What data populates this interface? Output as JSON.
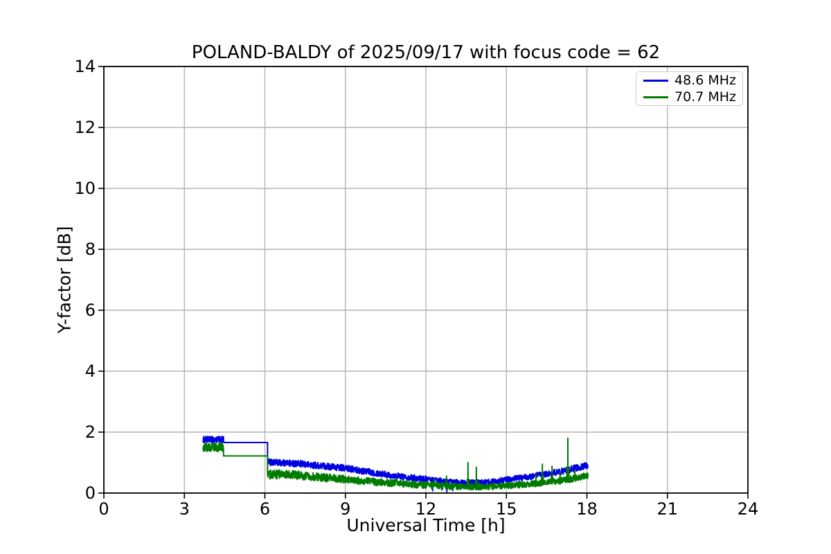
{
  "chart_data": {
    "type": "line",
    "title": "POLAND-BALDY of 2025/09/17 with focus code = 62",
    "xlabel": "Universal Time [h]",
    "ylabel": "Y-factor [dB]",
    "xlim": [
      0,
      24
    ],
    "ylim": [
      0,
      14
    ],
    "xticks": [
      0,
      3,
      6,
      9,
      12,
      15,
      18,
      21,
      24
    ],
    "yticks": [
      0,
      2,
      4,
      6,
      8,
      10,
      12,
      14
    ],
    "grid": true,
    "grid_color": "#b4b4b4",
    "axis_color": "#000000",
    "background_color": "#ffffff",
    "legend": {
      "position": "upper right",
      "entries": [
        {
          "label": "48.6 MHz",
          "color": "#0000e0"
        },
        {
          "label": "70.7 MHz",
          "color": "#007b00"
        }
      ]
    },
    "series": [
      {
        "name": "48.6 MHz",
        "color": "#0000e0",
        "segments": [
          {
            "type": "noisy",
            "x0": 3.7,
            "x1": 4.46,
            "center": [
              [
                3.7,
                1.75
              ],
              [
                4.46,
                1.75
              ]
            ],
            "amp": [
              [
                3.7,
                0.11
              ],
              [
                4.46,
                0.11
              ]
            ],
            "events": []
          },
          {
            "type": "flat",
            "x0": 4.46,
            "x1": 6.1,
            "value": 1.66
          },
          {
            "type": "noisy",
            "x0": 6.1,
            "x1": 18.05,
            "center": [
              [
                6.1,
                1.02
              ],
              [
                7,
                0.98
              ],
              [
                8,
                0.9
              ],
              [
                9,
                0.82
              ],
              [
                10,
                0.68
              ],
              [
                11,
                0.55
              ],
              [
                12,
                0.46
              ],
              [
                12.7,
                0.38
              ],
              [
                13.5,
                0.34
              ],
              [
                14.2,
                0.35
              ],
              [
                15,
                0.44
              ],
              [
                16,
                0.55
              ],
              [
                16.7,
                0.65
              ],
              [
                17.3,
                0.75
              ],
              [
                18.05,
                0.92
              ]
            ],
            "amp": [
              [
                6.1,
                0.11
              ],
              [
                9,
                0.11
              ],
              [
                12,
                0.1
              ],
              [
                14,
                0.09
              ],
              [
                16,
                0.1
              ],
              [
                18.05,
                0.12
              ]
            ],
            "events": [
              [
                12.25,
                0.07
              ],
              [
                12.6,
                0.1
              ],
              [
                12.78,
                0.04
              ],
              [
                13.0,
                0.08
              ],
              [
                13.3,
                0.12
              ]
            ]
          }
        ]
      },
      {
        "name": "70.7 MHz",
        "color": "#007b00",
        "segments": [
          {
            "type": "noisy",
            "x0": 3.7,
            "x1": 4.46,
            "center": [
              [
                3.7,
                1.5
              ],
              [
                4.46,
                1.5
              ]
            ],
            "amp": [
              [
                3.7,
                0.15
              ],
              [
                4.46,
                0.15
              ]
            ],
            "events": []
          },
          {
            "type": "flat",
            "x0": 4.46,
            "x1": 6.1,
            "value": 1.22
          },
          {
            "type": "noisy",
            "x0": 6.1,
            "x1": 18.05,
            "center": [
              [
                6.1,
                0.62
              ],
              [
                7,
                0.6
              ],
              [
                8,
                0.52
              ],
              [
                9,
                0.45
              ],
              [
                10,
                0.37
              ],
              [
                11,
                0.31
              ],
              [
                12,
                0.26
              ],
              [
                13,
                0.22
              ],
              [
                14,
                0.2
              ],
              [
                15,
                0.24
              ],
              [
                16,
                0.3
              ],
              [
                17,
                0.4
              ],
              [
                17.5,
                0.48
              ],
              [
                18.05,
                0.58
              ]
            ],
            "amp": [
              [
                6.1,
                0.16
              ],
              [
                7,
                0.14
              ],
              [
                9,
                0.13
              ],
              [
                12,
                0.11
              ],
              [
                14,
                0.1
              ],
              [
                16,
                0.1
              ],
              [
                18.05,
                0.11
              ]
            ],
            "events": [
              [
                12.32,
                0.46
              ],
              [
                12.77,
                0.56
              ],
              [
                13.57,
                1.0
              ],
              [
                13.88,
                0.85
              ],
              [
                16.1,
                0.62
              ],
              [
                16.34,
                0.95
              ],
              [
                16.7,
                0.88
              ],
              [
                17.0,
                0.7
              ],
              [
                17.29,
                1.8
              ],
              [
                17.55,
                0.75
              ]
            ]
          }
        ]
      }
    ]
  }
}
